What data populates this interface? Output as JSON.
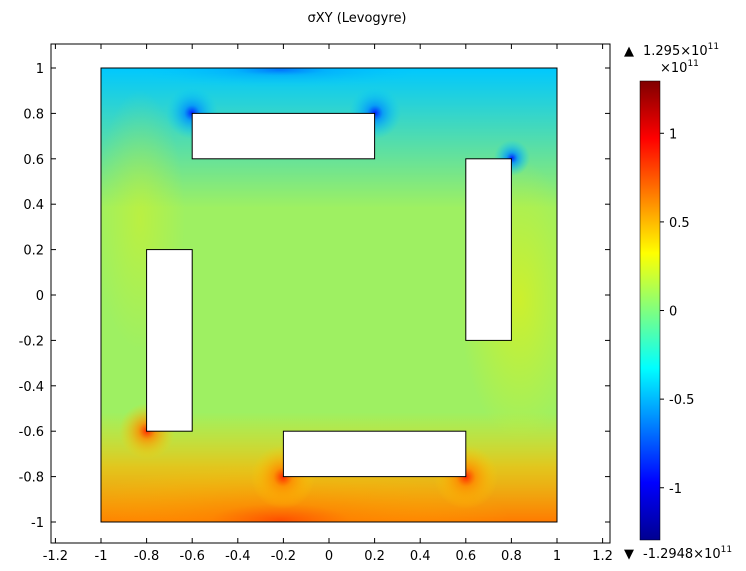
{
  "chart_data": {
    "type": "heatmap",
    "title": "σXY (Levogyre)",
    "xlabel": "",
    "ylabel": "",
    "xlim": [
      -1.25,
      1.25
    ],
    "ylim": [
      -1.1,
      1.1
    ],
    "x_ticks": [
      -1.2,
      -1,
      -0.8,
      -0.6,
      -0.4,
      -0.2,
      0,
      0.2,
      0.4,
      0.6,
      0.8,
      1,
      1.2
    ],
    "x_tick_labels": [
      "-1.2",
      "-1",
      "-0.8",
      "-0.6",
      "-0.4",
      "-0.2",
      "0",
      "0.2",
      "0.4",
      "0.6",
      "0.8",
      "1",
      "1.2"
    ],
    "y_ticks": [
      1,
      0.8,
      0.6,
      0.4,
      0.2,
      0,
      -0.2,
      -0.4,
      -0.6,
      -0.8,
      -1
    ],
    "y_tick_labels": [
      "1",
      "0.8",
      "0.6",
      "0.4",
      "0.2",
      "0",
      "-0.2",
      "-0.4",
      "-0.6",
      "-0.8",
      "-1"
    ],
    "domain_square": {
      "x": [
        -1,
        1
      ],
      "y": [
        -1,
        1
      ]
    },
    "holes": [
      {
        "name": "top",
        "x": [
          -0.6,
          0.2
        ],
        "y": [
          0.6,
          0.8
        ]
      },
      {
        "name": "right",
        "x": [
          0.6,
          0.8
        ],
        "y": [
          -0.2,
          0.6
        ]
      },
      {
        "name": "left",
        "x": [
          -0.8,
          -0.6
        ],
        "y": [
          -0.6,
          0.2
        ]
      },
      {
        "name": "bottom",
        "x": [
          -0.2,
          0.6
        ],
        "y": [
          -0.8,
          -0.6
        ]
      }
    ],
    "colormap": "jet",
    "grid": false,
    "colorbar": {
      "unit_label": "×10",
      "unit_exponent": "11",
      "max_label_prefix": "1.295×10",
      "max_label_exponent": "11",
      "min_label_prefix": "-1.2948×10",
      "min_label_exponent": "11",
      "max_value": 1.295,
      "min_value": -1.2948,
      "ticks": [
        1,
        0.5,
        0,
        -0.5,
        -1
      ],
      "tick_labels": [
        "1",
        "0.5",
        "0",
        "-0.5",
        "-1"
      ]
    }
  }
}
